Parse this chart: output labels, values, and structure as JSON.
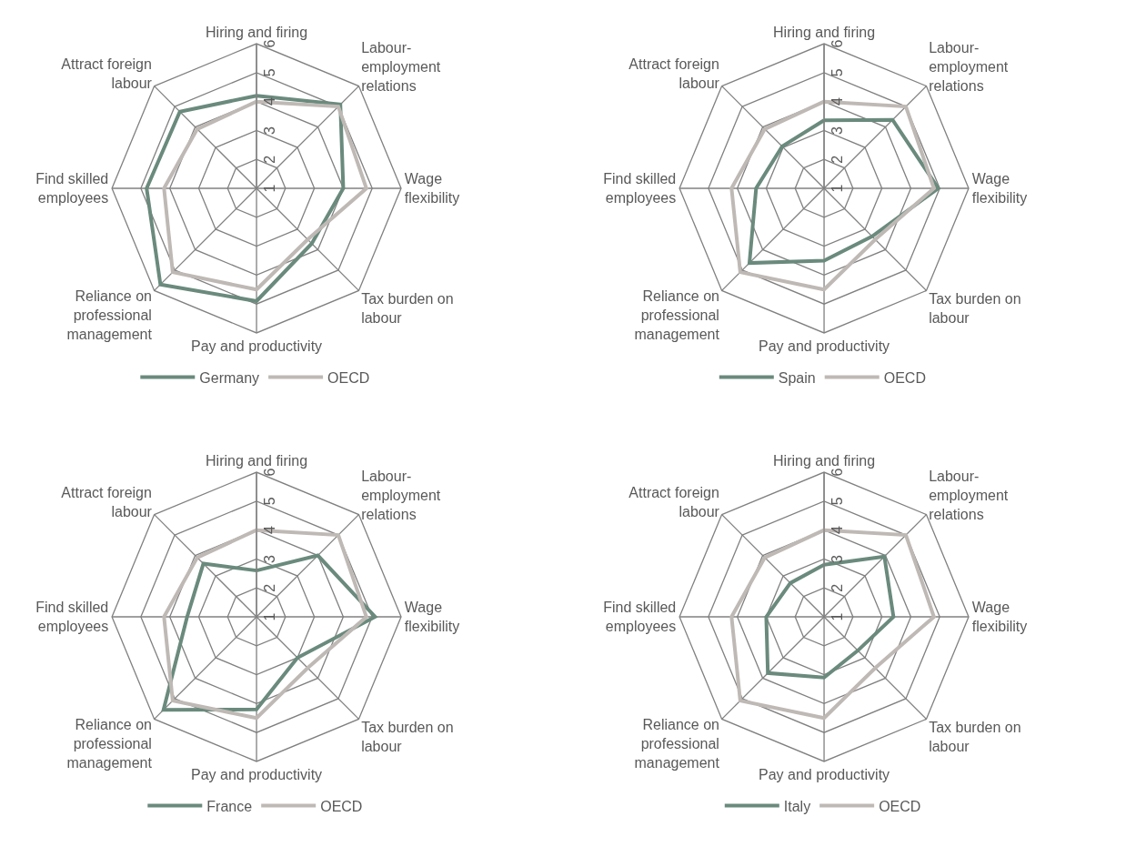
{
  "chart_data": [
    {
      "type": "radar",
      "categories": [
        "Hiring and firing",
        "Labour-\nemployment\nrelations",
        "Wage\nflexibility",
        "Tax burden on\nlabour",
        "Pay and productivity",
        "Reliance on\nprofessional\nmanagement",
        "Find skilled\nemployees",
        "Attract foreign\nlabour"
      ],
      "series": [
        {
          "name": "Germany",
          "color": "#6a8a7d",
          "values": [
            4.2,
            5.1,
            4.0,
            3.7,
            4.9,
            5.7,
            4.8,
            4.75
          ]
        },
        {
          "name": "OECD",
          "color": "#bfb9b5",
          "values": [
            4.0,
            5.0,
            4.8,
            3.5,
            4.5,
            5.1,
            4.2,
            3.9
          ]
        }
      ],
      "ylim": [
        1,
        6
      ],
      "yticks": [
        1,
        2,
        3,
        4,
        5,
        6
      ],
      "grid": true,
      "legend": "bottom"
    },
    {
      "type": "radar",
      "categories": [
        "Hiring and firing",
        "Labour-\nemployment\nrelations",
        "Wage\nflexibility",
        "Tax burden on\nlabour",
        "Pay and productivity",
        "Reliance on\nprofessional\nmanagement",
        "Find skilled\nemployees",
        "Attract foreign\nlabour"
      ],
      "series": [
        {
          "name": "Spain",
          "color": "#6a8a7d",
          "values": [
            3.35,
            4.35,
            4.95,
            3.35,
            3.5,
            4.65,
            3.35,
            3.05
          ]
        },
        {
          "name": "OECD",
          "color": "#bfb9b5",
          "values": [
            4.0,
            5.0,
            4.8,
            3.5,
            4.5,
            5.1,
            4.2,
            3.9
          ]
        }
      ],
      "ylim": [
        1,
        6
      ],
      "yticks": [
        1,
        2,
        3,
        4,
        5,
        6
      ],
      "grid": true,
      "legend": "bottom"
    },
    {
      "type": "radar",
      "categories": [
        "Hiring and firing",
        "Labour-\nemployment\nrelations",
        "Wage\nflexibility",
        "Tax burden on\nlabour",
        "Pay and productivity",
        "Reliance on\nprofessional\nmanagement",
        "Find skilled\nemployees",
        "Attract foreign\nlabour"
      ],
      "series": [
        {
          "name": "France",
          "color": "#6a8a7d",
          "values": [
            2.6,
            4.0,
            5.1,
            3.0,
            4.2,
            5.55,
            3.4,
            3.6
          ]
        },
        {
          "name": "OECD",
          "color": "#bfb9b5",
          "values": [
            4.0,
            5.0,
            4.8,
            3.5,
            4.5,
            5.1,
            4.2,
            3.9
          ]
        }
      ],
      "ylim": [
        1,
        6
      ],
      "yticks": [
        1,
        2,
        3,
        4,
        5,
        6
      ],
      "grid": true,
      "legend": "bottom"
    },
    {
      "type": "radar",
      "categories": [
        "Hiring and firing",
        "Labour-\nemployment\nrelations",
        "Wage\nflexibility",
        "Tax burden on\nlabour",
        "Pay and productivity",
        "Reliance on\nprofessional\nmanagement",
        "Find skilled\nemployees",
        "Attract foreign\nlabour"
      ],
      "series": [
        {
          "name": "Italy",
          "color": "#6a8a7d",
          "values": [
            2.8,
            3.95,
            3.4,
            2.65,
            3.1,
            3.75,
            3.0,
            2.65
          ]
        },
        {
          "name": "OECD",
          "color": "#bfb9b5",
          "values": [
            4.0,
            5.0,
            4.8,
            3.5,
            4.5,
            5.1,
            4.2,
            3.9
          ]
        }
      ],
      "ylim": [
        1,
        6
      ],
      "yticks": [
        1,
        2,
        3,
        4,
        5,
        6
      ],
      "grid": true,
      "legend": "bottom"
    }
  ]
}
